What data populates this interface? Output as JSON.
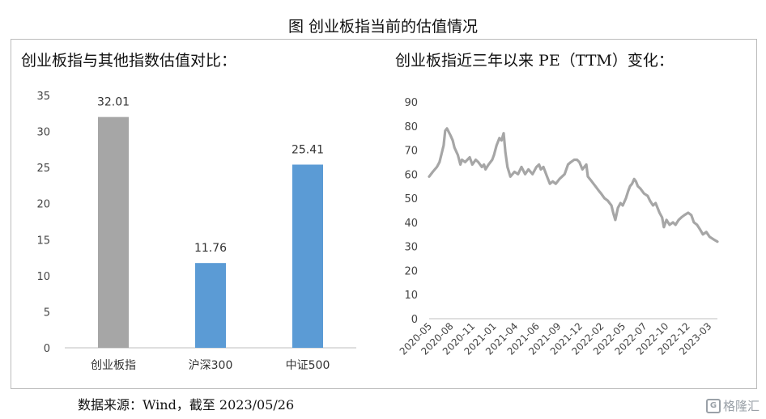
{
  "figure_title": "图  创业板指当前的估值情况",
  "source_note": "数据来源：Wind，截至 2023/05/26",
  "watermark": {
    "text": "格隆汇",
    "icon": "G"
  },
  "chart_data": [
    {
      "type": "bar",
      "title": "创业板指与其他指数估值对比：",
      "categories": [
        "创业板指",
        "沪深300",
        "中证500"
      ],
      "values": [
        32.01,
        11.76,
        25.41
      ],
      "data_labels": [
        "32.01",
        "11.76",
        "25.41"
      ],
      "bar_colors": [
        "#a6a6a6",
        "#5b9bd5",
        "#5b9bd5"
      ],
      "ylim": [
        0,
        35
      ],
      "yticks": [
        0,
        5,
        10,
        15,
        20,
        25,
        30,
        35
      ],
      "xlabel": "",
      "ylabel": "",
      "grid": false,
      "legend": "none"
    },
    {
      "type": "line",
      "title": "创业板指近三年以来 PE（TTM）变化：",
      "x_tick_labels": [
        "2020-05",
        "2020-08",
        "2020-11",
        "2021-01",
        "2021-04",
        "2021-06",
        "2021-09",
        "2021-12",
        "2022-02",
        "2022-05",
        "2022-07",
        "2022-10",
        "2022-12",
        "2023-03"
      ],
      "x_range": [
        "2020-05",
        "2023-05"
      ],
      "ylim": [
        0,
        90
      ],
      "yticks": [
        0,
        10,
        20,
        30,
        40,
        50,
        60,
        70,
        80,
        90
      ],
      "line_color": "#a6a6a6",
      "grid": false,
      "legend": "none",
      "xlabel": "",
      "ylabel": "",
      "series": [
        {
          "x": [
            "2020-05-06",
            "2020-05-20",
            "2020-06-05",
            "2020-06-15",
            "2020-06-22",
            "2020-07-01",
            "2020-07-07",
            "2020-07-14",
            "2020-07-28",
            "2020-08-05",
            "2020-08-12",
            "2020-08-25",
            "2020-09-04",
            "2020-09-10",
            "2020-09-22",
            "2020-10-10",
            "2020-10-20",
            "2020-11-02",
            "2020-11-12",
            "2020-11-26",
            "2020-12-04",
            "2020-12-10",
            "2020-12-22",
            "2021-01-05",
            "2021-01-12",
            "2021-01-22",
            "2021-02-02",
            "2021-02-10",
            "2021-02-18",
            "2021-02-25",
            "2021-03-05",
            "2021-03-16",
            "2021-04-01",
            "2021-04-15",
            "2021-04-28",
            "2021-05-12",
            "2021-05-25",
            "2021-06-10",
            "2021-06-25",
            "2021-07-05",
            "2021-07-12",
            "2021-07-22",
            "2021-08-05",
            "2021-08-16",
            "2021-08-27",
            "2021-09-08",
            "2021-09-22",
            "2021-10-12",
            "2021-10-25",
            "2021-11-05",
            "2021-11-18",
            "2021-11-29",
            "2021-12-08",
            "2021-12-20",
            "2022-01-04",
            "2022-01-10",
            "2022-01-25",
            "2022-02-08",
            "2022-02-22",
            "2022-03-02",
            "2022-03-15",
            "2022-03-28",
            "2022-04-11",
            "2022-04-18",
            "2022-04-26",
            "2022-05-06",
            "2022-05-16",
            "2022-05-25",
            "2022-06-06",
            "2022-06-15",
            "2022-06-22",
            "2022-06-30",
            "2022-07-08",
            "2022-07-15",
            "2022-07-22",
            "2022-08-01",
            "2022-08-15",
            "2022-08-29",
            "2022-09-07",
            "2022-09-19",
            "2022-09-29",
            "2022-10-14",
            "2022-10-24",
            "2022-10-31",
            "2022-11-10",
            "2022-11-22",
            "2022-12-05",
            "2022-12-15",
            "2022-12-27",
            "2023-01-06",
            "2023-01-18",
            "2023-02-02",
            "2023-02-14",
            "2023-02-24",
            "2023-03-08",
            "2023-03-20",
            "2023-03-31",
            "2023-04-13",
            "2023-04-26",
            "2023-05-10",
            "2023-05-26"
          ],
          "y": [
            59,
            61,
            63,
            65,
            68,
            72,
            78,
            79,
            76,
            74,
            71,
            68,
            64,
            66,
            65,
            67,
            64,
            66,
            65,
            63,
            64,
            62,
            64,
            66,
            68,
            72,
            75,
            74,
            77,
            69,
            63,
            59,
            61,
            60,
            63,
            60,
            62,
            60,
            63,
            64,
            62,
            63,
            59,
            56,
            57,
            56,
            58,
            60,
            64,
            65,
            66,
            66,
            65,
            62,
            64,
            59,
            57,
            55,
            53,
            52,
            50,
            49,
            47,
            44,
            41,
            46,
            48,
            47,
            50,
            53,
            55,
            56,
            58,
            57,
            55,
            54,
            52,
            51,
            49,
            47,
            48,
            44,
            42,
            38,
            41,
            39,
            40,
            39,
            41,
            42,
            43,
            44,
            43,
            40,
            39,
            37,
            35,
            36,
            34,
            33,
            32
          ]
        }
      ]
    }
  ]
}
